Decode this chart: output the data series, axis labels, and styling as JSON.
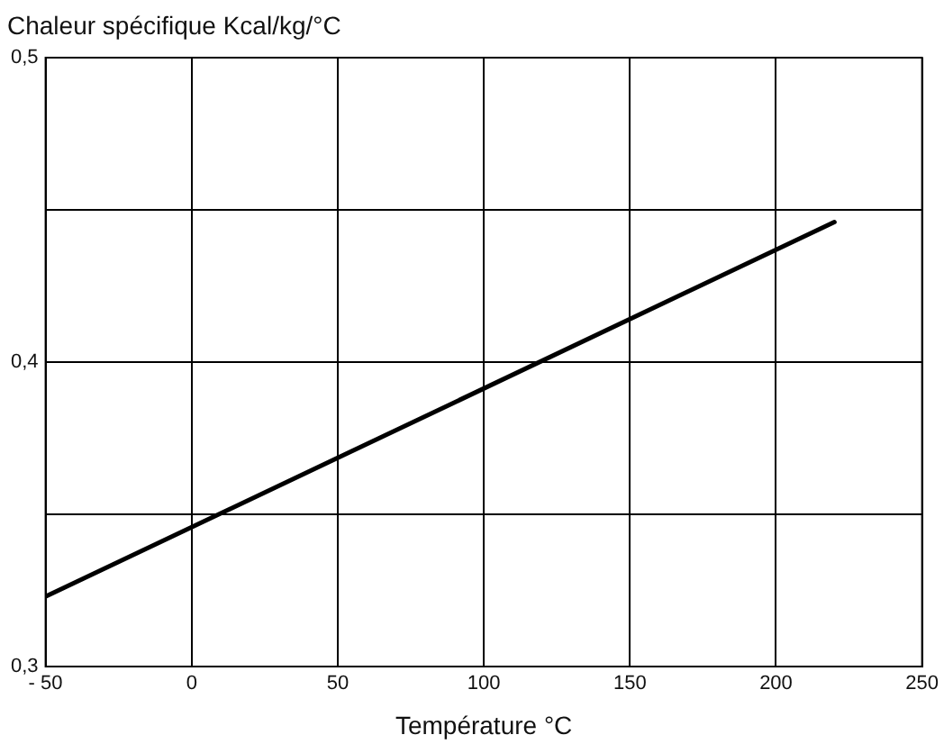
{
  "chart_data": {
    "type": "line",
    "ylabel": "Chaleur spécifique Kcal/kg/°C",
    "xlabel": "Température °C",
    "x": [
      -50,
      220
    ],
    "series": [
      {
        "color": "#000000",
        "values": [
          0.323,
          0.446
        ]
      }
    ],
    "xlim": [
      -50,
      250
    ],
    "xticks": [
      {
        "value": -50,
        "label": "- 50"
      },
      0,
      50,
      100,
      150,
      200,
      250
    ],
    "ylim": [
      0.3,
      0.5
    ],
    "yticks": [
      {
        "value": 0.3,
        "label": "0,3"
      },
      {
        "value": 0.35,
        "label": null
      },
      {
        "value": 0.4,
        "label": "0,4"
      },
      {
        "value": 0.45,
        "label": null
      },
      {
        "value": 0.5,
        "label": "0,5"
      }
    ],
    "grid": true,
    "legend": false,
    "marker": "none",
    "line_style": "solid"
  }
}
